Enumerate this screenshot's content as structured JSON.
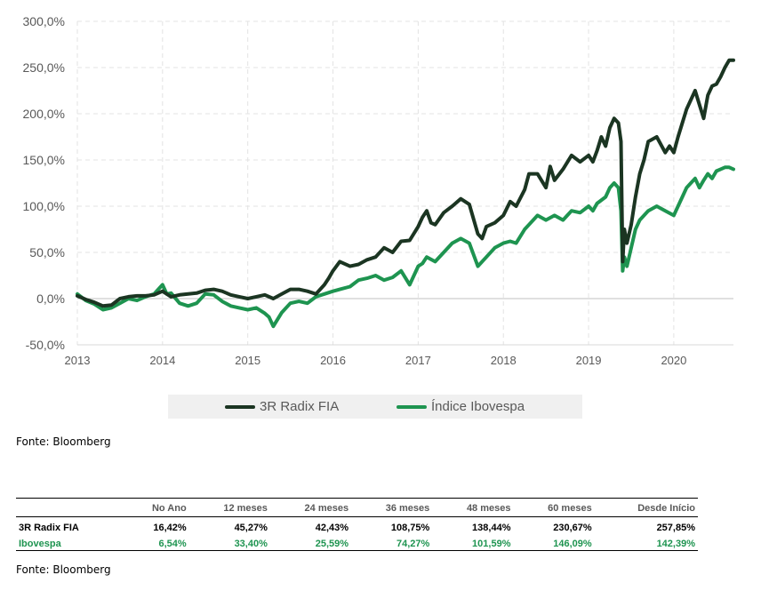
{
  "chart_data": {
    "type": "line",
    "y_tick_labels": [
      "300,0%",
      "250,0%",
      "200,0%",
      "150,0%",
      "100,0%",
      "50,0%",
      "0,0%",
      "-50,0%"
    ],
    "y_ticks": [
      300,
      250,
      200,
      150,
      100,
      50,
      0,
      -50
    ],
    "ylim": [
      -50,
      300
    ],
    "x_tick_labels": [
      "2013",
      "2014",
      "2015",
      "2016",
      "2017",
      "2018",
      "2019",
      "2020"
    ],
    "x_ticks": [
      2013,
      2014,
      2015,
      2016,
      2017,
      2018,
      2019,
      2020
    ],
    "xlim": [
      2013.0,
      2020.7
    ],
    "grid": true,
    "legend_position": "bottom",
    "series": [
      {
        "name": "3R Radix FIA",
        "color": "#1b3522",
        "points": [
          [
            2013.0,
            3
          ],
          [
            2013.1,
            -1
          ],
          [
            2013.2,
            -4
          ],
          [
            2013.3,
            -8
          ],
          [
            2013.4,
            -7
          ],
          [
            2013.5,
            0
          ],
          [
            2013.6,
            2
          ],
          [
            2013.7,
            3
          ],
          [
            2013.8,
            3
          ],
          [
            2013.9,
            4
          ],
          [
            2014.0,
            8
          ],
          [
            2014.1,
            2
          ],
          [
            2014.2,
            4
          ],
          [
            2014.3,
            5
          ],
          [
            2014.4,
            6
          ],
          [
            2014.5,
            9
          ],
          [
            2014.6,
            10
          ],
          [
            2014.7,
            8
          ],
          [
            2014.8,
            4
          ],
          [
            2014.9,
            2
          ],
          [
            2015.0,
            0
          ],
          [
            2015.1,
            2
          ],
          [
            2015.2,
            4
          ],
          [
            2015.3,
            0
          ],
          [
            2015.4,
            5
          ],
          [
            2015.5,
            10
          ],
          [
            2015.6,
            10
          ],
          [
            2015.7,
            8
          ],
          [
            2015.8,
            5
          ],
          [
            2015.9,
            15
          ],
          [
            2015.95,
            22
          ],
          [
            2016.0,
            30
          ],
          [
            2016.08,
            40
          ],
          [
            2016.2,
            35
          ],
          [
            2016.3,
            37
          ],
          [
            2016.4,
            42
          ],
          [
            2016.5,
            45
          ],
          [
            2016.6,
            55
          ],
          [
            2016.7,
            50
          ],
          [
            2016.8,
            62
          ],
          [
            2016.9,
            63
          ],
          [
            2017.0,
            78
          ],
          [
            2017.05,
            88
          ],
          [
            2017.1,
            95
          ],
          [
            2017.15,
            82
          ],
          [
            2017.2,
            80
          ],
          [
            2017.3,
            93
          ],
          [
            2017.4,
            100
          ],
          [
            2017.5,
            108
          ],
          [
            2017.6,
            102
          ],
          [
            2017.7,
            70
          ],
          [
            2017.75,
            65
          ],
          [
            2017.8,
            78
          ],
          [
            2017.9,
            82
          ],
          [
            2018.0,
            90
          ],
          [
            2018.08,
            105
          ],
          [
            2018.15,
            100
          ],
          [
            2018.25,
            118
          ],
          [
            2018.3,
            135
          ],
          [
            2018.4,
            135
          ],
          [
            2018.5,
            120
          ],
          [
            2018.55,
            143
          ],
          [
            2018.6,
            128
          ],
          [
            2018.7,
            140
          ],
          [
            2018.8,
            155
          ],
          [
            2018.9,
            148
          ],
          [
            2019.0,
            155
          ],
          [
            2019.05,
            148
          ],
          [
            2019.1,
            160
          ],
          [
            2019.15,
            175
          ],
          [
            2019.2,
            165
          ],
          [
            2019.25,
            185
          ],
          [
            2019.3,
            195
          ],
          [
            2019.35,
            190
          ],
          [
            2019.38,
            170
          ],
          [
            2019.4,
            40
          ],
          [
            2019.42,
            75
          ],
          [
            2019.45,
            60
          ],
          [
            2019.5,
            80
          ],
          [
            2019.55,
            110
          ],
          [
            2019.6,
            135
          ],
          [
            2019.65,
            150
          ],
          [
            2019.7,
            170
          ],
          [
            2019.8,
            175
          ],
          [
            2019.9,
            158
          ],
          [
            2019.95,
            165
          ],
          [
            2020.0,
            158
          ],
          [
            2020.05,
            175
          ],
          [
            2020.1,
            190
          ],
          [
            2020.15,
            205
          ],
          [
            2020.2,
            215
          ],
          [
            2020.25,
            225
          ],
          [
            2020.3,
            210
          ],
          [
            2020.35,
            195
          ],
          [
            2020.4,
            220
          ],
          [
            2020.45,
            230
          ],
          [
            2020.5,
            232
          ],
          [
            2020.55,
            240
          ],
          [
            2020.6,
            250
          ],
          [
            2020.65,
            258
          ],
          [
            2020.7,
            258
          ]
        ]
      },
      {
        "name": "Índice Ibovespa",
        "color": "#1e9450",
        "points": [
          [
            2013.0,
            5
          ],
          [
            2013.1,
            -2
          ],
          [
            2013.2,
            -6
          ],
          [
            2013.3,
            -12
          ],
          [
            2013.4,
            -10
          ],
          [
            2013.5,
            -5
          ],
          [
            2013.6,
            0
          ],
          [
            2013.7,
            -2
          ],
          [
            2013.8,
            2
          ],
          [
            2013.9,
            5
          ],
          [
            2014.0,
            15
          ],
          [
            2014.05,
            5
          ],
          [
            2014.1,
            6
          ],
          [
            2014.2,
            -5
          ],
          [
            2014.3,
            -8
          ],
          [
            2014.4,
            -5
          ],
          [
            2014.5,
            5
          ],
          [
            2014.6,
            4
          ],
          [
            2014.7,
            -3
          ],
          [
            2014.8,
            -8
          ],
          [
            2014.9,
            -10
          ],
          [
            2015.0,
            -12
          ],
          [
            2015.1,
            -10
          ],
          [
            2015.2,
            -16
          ],
          [
            2015.25,
            -20
          ],
          [
            2015.3,
            -30
          ],
          [
            2015.4,
            -15
          ],
          [
            2015.5,
            -5
          ],
          [
            2015.6,
            -3
          ],
          [
            2015.7,
            -5
          ],
          [
            2015.8,
            2
          ],
          [
            2015.9,
            5
          ],
          [
            2016.0,
            8
          ],
          [
            2016.08,
            10
          ],
          [
            2016.2,
            13
          ],
          [
            2016.3,
            20
          ],
          [
            2016.4,
            22
          ],
          [
            2016.5,
            25
          ],
          [
            2016.6,
            20
          ],
          [
            2016.7,
            23
          ],
          [
            2016.8,
            30
          ],
          [
            2016.9,
            15
          ],
          [
            2017.0,
            35
          ],
          [
            2017.05,
            38
          ],
          [
            2017.1,
            45
          ],
          [
            2017.2,
            40
          ],
          [
            2017.3,
            50
          ],
          [
            2017.4,
            60
          ],
          [
            2017.5,
            65
          ],
          [
            2017.6,
            60
          ],
          [
            2017.7,
            35
          ],
          [
            2017.8,
            45
          ],
          [
            2017.9,
            55
          ],
          [
            2018.0,
            60
          ],
          [
            2018.08,
            62
          ],
          [
            2018.15,
            60
          ],
          [
            2018.25,
            75
          ],
          [
            2018.3,
            80
          ],
          [
            2018.4,
            90
          ],
          [
            2018.5,
            85
          ],
          [
            2018.6,
            90
          ],
          [
            2018.7,
            85
          ],
          [
            2018.8,
            95
          ],
          [
            2018.9,
            93
          ],
          [
            2019.0,
            100
          ],
          [
            2019.05,
            95
          ],
          [
            2019.1,
            103
          ],
          [
            2019.2,
            110
          ],
          [
            2019.25,
            120
          ],
          [
            2019.3,
            125
          ],
          [
            2019.35,
            120
          ],
          [
            2019.38,
            95
          ],
          [
            2019.4,
            30
          ],
          [
            2019.42,
            45
          ],
          [
            2019.45,
            35
          ],
          [
            2019.5,
            55
          ],
          [
            2019.55,
            75
          ],
          [
            2019.6,
            85
          ],
          [
            2019.7,
            95
          ],
          [
            2019.8,
            100
          ],
          [
            2019.9,
            95
          ],
          [
            2020.0,
            90
          ],
          [
            2020.05,
            100
          ],
          [
            2020.1,
            110
          ],
          [
            2020.15,
            120
          ],
          [
            2020.2,
            125
          ],
          [
            2020.25,
            130
          ],
          [
            2020.3,
            120
          ],
          [
            2020.35,
            128
          ],
          [
            2020.4,
            135
          ],
          [
            2020.45,
            130
          ],
          [
            2020.5,
            138
          ],
          [
            2020.55,
            140
          ],
          [
            2020.6,
            142
          ],
          [
            2020.65,
            142
          ],
          [
            2020.7,
            140
          ]
        ]
      }
    ]
  },
  "legend": {
    "items": [
      {
        "label": "3R Radix FIA",
        "color": "#1b3522"
      },
      {
        "label": "Índice Ibovespa",
        "color": "#1e9450"
      }
    ]
  },
  "source_label_1": "Fonte: Bloomberg",
  "table": {
    "headers": [
      "",
      "No Ano",
      "12 meses",
      "24 meses",
      "36 meses",
      "48 meses",
      "60 meses",
      "Desde Início"
    ],
    "rows": [
      {
        "name": "3R Radix FIA",
        "values": [
          "16,42%",
          "45,27%",
          "42,43%",
          "108,75%",
          "138,44%",
          "230,67%",
          "257,85%"
        ]
      },
      {
        "name": "Ibovespa",
        "values": [
          "6,54%",
          "33,40%",
          "25,59%",
          "74,27%",
          "101,59%",
          "146,09%",
          "142,39%"
        ]
      }
    ]
  },
  "source_label_2": "Fonte: Bloomberg"
}
